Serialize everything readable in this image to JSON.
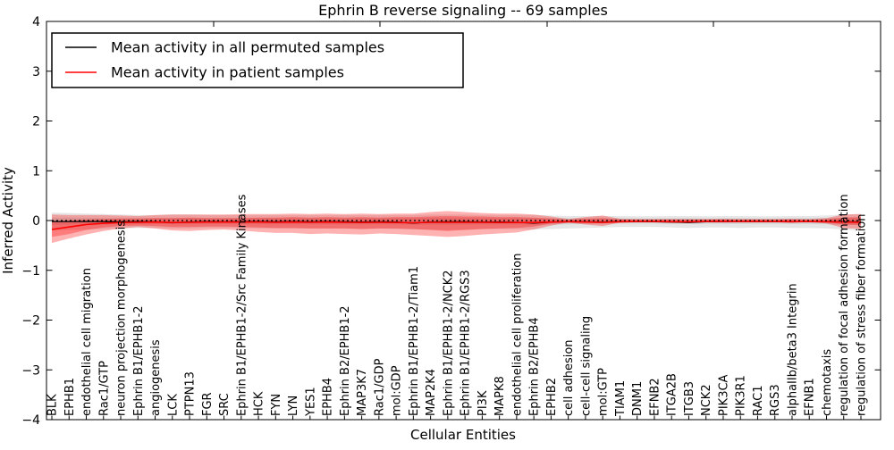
{
  "title": "Ephrin B reverse signaling -- 69 samples",
  "axes": {
    "xlabel": "Cellular Entities",
    "ylabel": "Inferred Activity"
  },
  "legend": {
    "permuted_label": "Mean activity in all permuted samples",
    "patient_label": "Mean activity in patient samples"
  },
  "colors": {
    "permuted_line": "#000000",
    "patient_line": "#ff0000",
    "permuted_band": "#808080",
    "patient_band": "#ff0000",
    "zero_line": "#000000",
    "background": "#ffffff"
  },
  "chart_data": {
    "type": "line",
    "title": "Ephrin B reverse signaling -- 69 samples",
    "xlabel": "Cellular Entities",
    "ylabel": "Inferred Activity",
    "ylim": [
      -4,
      4
    ],
    "yticks": [
      -4,
      -3,
      -2,
      -1,
      0,
      1,
      2,
      3,
      4
    ],
    "grid": false,
    "legend_position": "upper left",
    "zero_line": 0,
    "categories": [
      "BLK",
      "EPHB1",
      "endothelial cell migration",
      "Rac1/GTP",
      "neuron projection morphogenesis",
      "Ephrin B1/EPHB1-2",
      "angiogenesis",
      "LCK",
      "PTPN13",
      "FGR",
      "SRC",
      "Ephrin B1/EPHB1-2/Src Family Kinases",
      "HCK",
      "FYN",
      "LYN",
      "YES1",
      "EPHB4",
      "Ephrin B2/EPHB1-2",
      "MAP3K7",
      "Rac1/GDP",
      "mol:GDP",
      "Ephrin B1/EPHB1-2/Tiam1",
      "MAP2K4",
      "Ephrin B1/EPHB1-2/NCK2",
      "Ephrin B1/EPHB1-2/RGS3",
      "PI3K",
      "MAPK8",
      "endothelial cell proliferation",
      "Ephrin B2/EPHB4",
      "EPHB2",
      "cell adhesion",
      "cell-cell signaling",
      "mol:GTP",
      "TIAM1",
      "DNM1",
      "EFNB2",
      "ITGA2B",
      "ITGB3",
      "NCK2",
      "PIK3CA",
      "PIK3R1",
      "RAC1",
      "RGS3",
      "alphaIIb/beta3 Integrin",
      "EFNB1",
      "chemotaxis",
      "regulation of focal adhesion formation",
      "regulation of stress fiber formation"
    ],
    "series": [
      {
        "name": "Mean activity in all permuted samples",
        "color": "#000000",
        "width": 1.3,
        "values": [
          -0.02,
          -0.02,
          -0.02,
          -0.02,
          -0.025,
          -0.02,
          -0.025,
          -0.045,
          -0.03,
          -0.02,
          -0.025,
          -0.02,
          -0.02,
          -0.025,
          -0.02,
          -0.025,
          -0.02,
          -0.025,
          -0.03,
          -0.025,
          -0.03,
          -0.05,
          -0.03,
          -0.025,
          -0.025,
          -0.03,
          -0.03,
          -0.035,
          -0.05,
          -0.03,
          -0.025,
          -0.025,
          -0.03,
          -0.02,
          -0.02,
          -0.025,
          -0.03,
          -0.04,
          -0.025,
          -0.02,
          -0.02,
          -0.02,
          -0.02,
          -0.025,
          -0.02,
          -0.02,
          -0.025,
          -0.025
        ]
      },
      {
        "name": "Mean activity in patient samples",
        "color": "#ff0000",
        "width": 1.6,
        "values": [
          -0.18,
          -0.13,
          -0.08,
          -0.055,
          -0.04,
          -0.035,
          -0.03,
          -0.04,
          -0.035,
          -0.03,
          -0.03,
          -0.03,
          -0.03,
          -0.035,
          -0.03,
          -0.035,
          -0.03,
          -0.035,
          -0.04,
          -0.035,
          -0.04,
          -0.045,
          -0.035,
          -0.035,
          -0.035,
          -0.035,
          -0.04,
          -0.04,
          -0.04,
          -0.03,
          -0.025,
          -0.03,
          -0.035,
          -0.025,
          -0.02,
          -0.02,
          -0.025,
          -0.025,
          -0.02,
          -0.02,
          -0.02,
          -0.02,
          -0.02,
          -0.025,
          -0.02,
          -0.025,
          -0.03,
          -0.035
        ]
      }
    ],
    "bands": [
      {
        "name": "permuted-outer-band",
        "color": "#808080",
        "opacity": 0.2,
        "upper": [
          0.16,
          0.15,
          0.14,
          0.13,
          0.12,
          0.11,
          0.11,
          0.12,
          0.12,
          0.11,
          0.11,
          0.11,
          0.11,
          0.11,
          0.11,
          0.11,
          0.11,
          0.11,
          0.11,
          0.11,
          0.11,
          0.11,
          0.12,
          0.12,
          0.12,
          0.11,
          0.11,
          0.11,
          0.11,
          0.1,
          0.09,
          0.09,
          0.09,
          0.09,
          0.085,
          0.085,
          0.09,
          0.09,
          0.085,
          0.09,
          0.09,
          0.085,
          0.085,
          0.09,
          0.09,
          0.1,
          0.12,
          0.13
        ],
        "lower": [
          -0.2,
          -0.19,
          -0.18,
          -0.17,
          -0.16,
          -0.15,
          -0.15,
          -0.16,
          -0.16,
          -0.15,
          -0.15,
          -0.15,
          -0.16,
          -0.16,
          -0.16,
          -0.16,
          -0.16,
          -0.16,
          -0.17,
          -0.16,
          -0.17,
          -0.18,
          -0.18,
          -0.19,
          -0.18,
          -0.17,
          -0.17,
          -0.17,
          -0.18,
          -0.17,
          -0.16,
          -0.15,
          -0.14,
          -0.13,
          -0.13,
          -0.13,
          -0.14,
          -0.15,
          -0.14,
          -0.14,
          -0.15,
          -0.14,
          -0.14,
          -0.15,
          -0.15,
          -0.16,
          -0.18,
          -0.2
        ]
      },
      {
        "name": "permuted-inner-band",
        "color": "#808080",
        "opacity": 0.2,
        "upper": [
          0.06,
          0.06,
          0.055,
          0.05,
          0.05,
          0.05,
          0.05,
          0.05,
          0.05,
          0.05,
          0.05,
          0.05,
          0.05,
          0.05,
          0.05,
          0.05,
          0.05,
          0.05,
          0.05,
          0.05,
          0.05,
          0.05,
          0.055,
          0.055,
          0.055,
          0.05,
          0.05,
          0.05,
          0.05,
          0.05,
          0.045,
          0.045,
          0.045,
          0.045,
          0.04,
          0.04,
          0.045,
          0.045,
          0.04,
          0.045,
          0.045,
          0.04,
          0.04,
          0.045,
          0.045,
          0.05,
          0.055,
          0.06
        ],
        "lower": [
          -0.09,
          -0.085,
          -0.08,
          -0.08,
          -0.075,
          -0.07,
          -0.07,
          -0.075,
          -0.075,
          -0.07,
          -0.07,
          -0.07,
          -0.075,
          -0.075,
          -0.075,
          -0.075,
          -0.075,
          -0.075,
          -0.08,
          -0.075,
          -0.08,
          -0.085,
          -0.085,
          -0.09,
          -0.085,
          -0.08,
          -0.08,
          -0.08,
          -0.085,
          -0.08,
          -0.075,
          -0.07,
          -0.065,
          -0.06,
          -0.06,
          -0.06,
          -0.065,
          -0.07,
          -0.065,
          -0.065,
          -0.07,
          -0.065,
          -0.065,
          -0.07,
          -0.07,
          -0.075,
          -0.085,
          -0.09
        ]
      },
      {
        "name": "patient-outer-band",
        "color": "#ff0000",
        "opacity": 0.3,
        "upper": [
          0.12,
          0.11,
          0.11,
          0.11,
          0.1,
          0.09,
          0.11,
          0.12,
          0.12,
          0.12,
          0.12,
          0.13,
          0.13,
          0.13,
          0.14,
          0.13,
          0.14,
          0.13,
          0.14,
          0.13,
          0.14,
          0.14,
          0.17,
          0.19,
          0.17,
          0.15,
          0.14,
          0.14,
          0.12,
          0.08,
          0.03,
          0.07,
          0.1,
          0.035,
          0.03,
          0.03,
          0.03,
          0.03,
          0.03,
          0.035,
          0.03,
          0.03,
          0.03,
          0.035,
          0.03,
          0.05,
          0.12,
          0.13
        ],
        "lower": [
          -0.45,
          -0.36,
          -0.28,
          -0.21,
          -0.16,
          -0.13,
          -0.16,
          -0.2,
          -0.21,
          -0.19,
          -0.18,
          -0.2,
          -0.23,
          -0.25,
          -0.25,
          -0.27,
          -0.26,
          -0.27,
          -0.28,
          -0.26,
          -0.27,
          -0.29,
          -0.31,
          -0.33,
          -0.31,
          -0.28,
          -0.26,
          -0.24,
          -0.18,
          -0.1,
          -0.04,
          -0.08,
          -0.11,
          -0.04,
          -0.035,
          -0.035,
          -0.035,
          -0.035,
          -0.035,
          -0.04,
          -0.035,
          -0.035,
          -0.035,
          -0.04,
          -0.035,
          -0.06,
          -0.15,
          -0.17
        ]
      },
      {
        "name": "patient-inner-band",
        "color": "#ff0000",
        "opacity": 0.3,
        "upper": [
          -0.02,
          0.0,
          0.02,
          0.03,
          0.04,
          0.04,
          0.05,
          0.05,
          0.06,
          0.05,
          0.05,
          0.05,
          0.06,
          0.06,
          0.07,
          0.06,
          0.07,
          0.06,
          0.07,
          0.06,
          0.07,
          0.07,
          0.08,
          0.09,
          0.08,
          0.08,
          0.07,
          0.07,
          0.06,
          0.04,
          0.015,
          0.035,
          0.05,
          0.02,
          0.015,
          0.015,
          0.015,
          0.015,
          0.015,
          0.02,
          0.015,
          0.015,
          0.015,
          0.02,
          0.015,
          0.025,
          0.06,
          0.07
        ],
        "lower": [
          -0.33,
          -0.27,
          -0.19,
          -0.14,
          -0.11,
          -0.1,
          -0.11,
          -0.13,
          -0.13,
          -0.12,
          -0.12,
          -0.13,
          -0.14,
          -0.15,
          -0.15,
          -0.16,
          -0.16,
          -0.16,
          -0.17,
          -0.16,
          -0.16,
          -0.17,
          -0.19,
          -0.21,
          -0.19,
          -0.17,
          -0.16,
          -0.15,
          -0.12,
          -0.06,
          -0.02,
          -0.04,
          -0.06,
          -0.03,
          -0.025,
          -0.025,
          -0.025,
          -0.025,
          -0.025,
          -0.03,
          -0.025,
          -0.025,
          -0.025,
          -0.03,
          -0.025,
          -0.035,
          -0.08,
          -0.09
        ]
      }
    ]
  }
}
